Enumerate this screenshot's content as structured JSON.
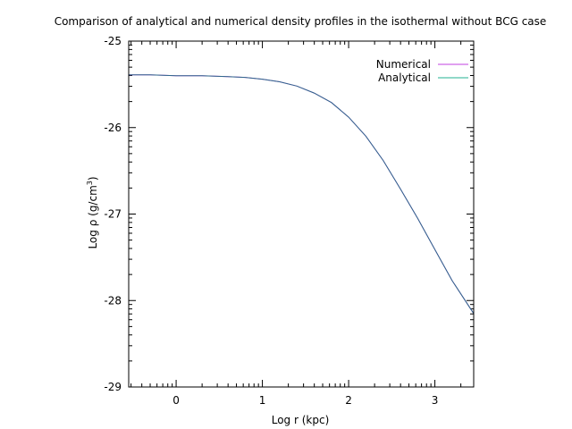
{
  "chart_data": {
    "type": "line",
    "title": "Comparison of analytical and numerical density profiles in the isothermal without BCG case",
    "xlabel": "Log r (kpc)",
    "ylabel_main": "Log ρ (g/cm",
    "ylabel_sup": "3",
    "ylabel_close": ")",
    "xlim": [
      -0.55,
      3.45
    ],
    "ylim": [
      -29,
      -25
    ],
    "x_ticks": [
      {
        "value": 0,
        "label": "0"
      },
      {
        "value": 1,
        "label": "1"
      },
      {
        "value": 2,
        "label": "2"
      },
      {
        "value": 3,
        "label": "3"
      }
    ],
    "y_ticks": [
      {
        "value": -25,
        "label": "-25"
      },
      {
        "value": -26,
        "label": "-26"
      },
      {
        "value": -27,
        "label": "-27"
      },
      {
        "value": -28,
        "label": "-28"
      },
      {
        "value": -29,
        "label": "-29"
      }
    ],
    "legend_position": "top-right",
    "series": [
      {
        "name": "Numerical",
        "color": "#c040e0",
        "x": [
          -0.55,
          -0.3,
          0,
          0.3,
          0.6,
          0.8,
          1.0,
          1.2,
          1.4,
          1.6,
          1.8,
          2.0,
          2.2,
          2.4,
          2.6,
          2.8,
          3.0,
          3.2,
          3.45
        ],
        "y": [
          -25.39,
          -25.39,
          -25.4,
          -25.4,
          -25.41,
          -25.42,
          -25.44,
          -25.47,
          -25.52,
          -25.6,
          -25.71,
          -25.88,
          -26.1,
          -26.38,
          -26.71,
          -27.05,
          -27.41,
          -27.77,
          -28.15
        ]
      },
      {
        "name": "Analytical",
        "color": "#20b090",
        "x": [
          -0.55,
          -0.3,
          0,
          0.3,
          0.6,
          0.8,
          1.0,
          1.2,
          1.4,
          1.6,
          1.8,
          2.0,
          2.2,
          2.4,
          2.6,
          2.8,
          3.0,
          3.2,
          3.45
        ],
        "y": [
          -25.39,
          -25.39,
          -25.4,
          -25.4,
          -25.41,
          -25.42,
          -25.44,
          -25.47,
          -25.52,
          -25.6,
          -25.71,
          -25.88,
          -26.1,
          -26.38,
          -26.71,
          -27.05,
          -27.41,
          -27.77,
          -28.15
        ]
      }
    ],
    "overlap_color": "#2e6a8a",
    "grid": false
  }
}
